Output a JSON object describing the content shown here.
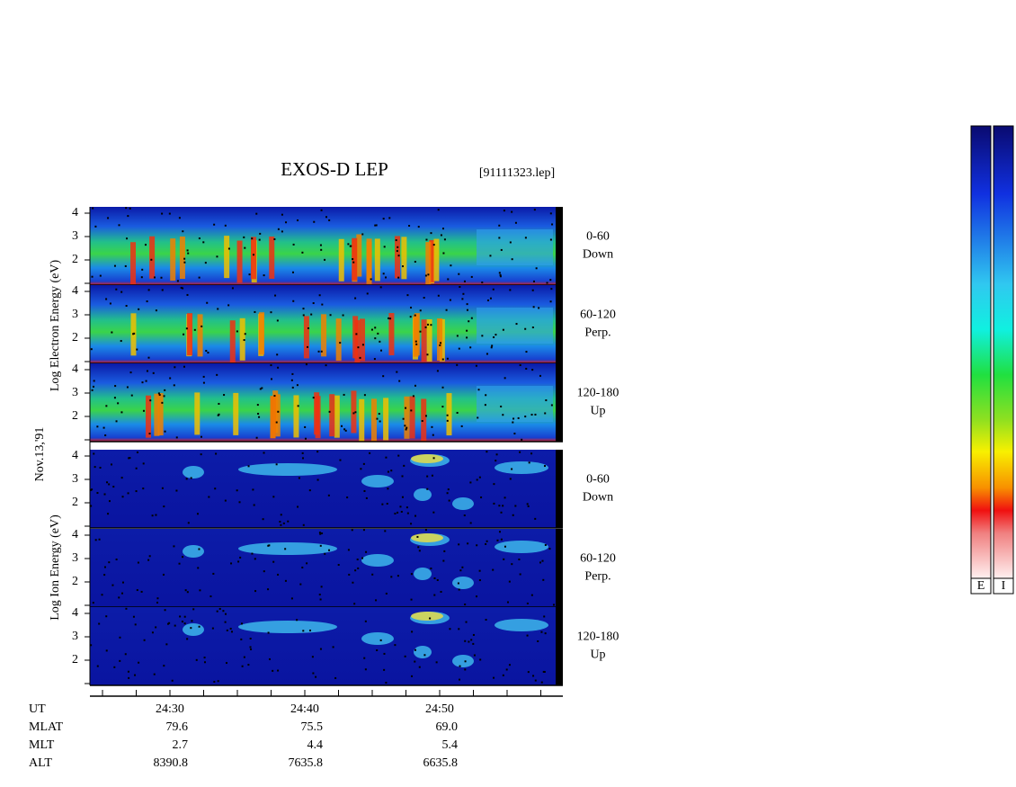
{
  "title": "EXOS-D LEP",
  "file": "[91111323.lep]",
  "date": "Nov.13,'91",
  "electron_axis_label": "Log  Electron  Energy (eV)",
  "ion_axis_label": "Log  Ion  Energy (eV)",
  "energy_ticks": [
    2,
    3,
    4
  ],
  "electron_panels": [
    {
      "angle": "0-60",
      "direction": "Down"
    },
    {
      "angle": "60-120",
      "direction": "Perp."
    },
    {
      "angle": "120-180",
      "direction": "Up"
    }
  ],
  "ion_panels": [
    {
      "angle": "0-60",
      "direction": "Down"
    },
    {
      "angle": "60-120",
      "direction": "Perp."
    },
    {
      "angle": "120-180",
      "direction": "Up"
    }
  ],
  "ephemeris": [
    {
      "label": "UT",
      "values": [
        "24:30",
        "24:40",
        "24:50"
      ]
    },
    {
      "label": "MLAT",
      "values": [
        "79.6",
        "75.5",
        "69.0"
      ]
    },
    {
      "label": "MLT",
      "values": [
        "2.7",
        "4.4",
        "5.4"
      ]
    },
    {
      "label": "ALT",
      "values": [
        "8390.8",
        "7635.8",
        "6635.8"
      ]
    }
  ],
  "colorbar_labels": [
    "E",
    "I"
  ]
}
